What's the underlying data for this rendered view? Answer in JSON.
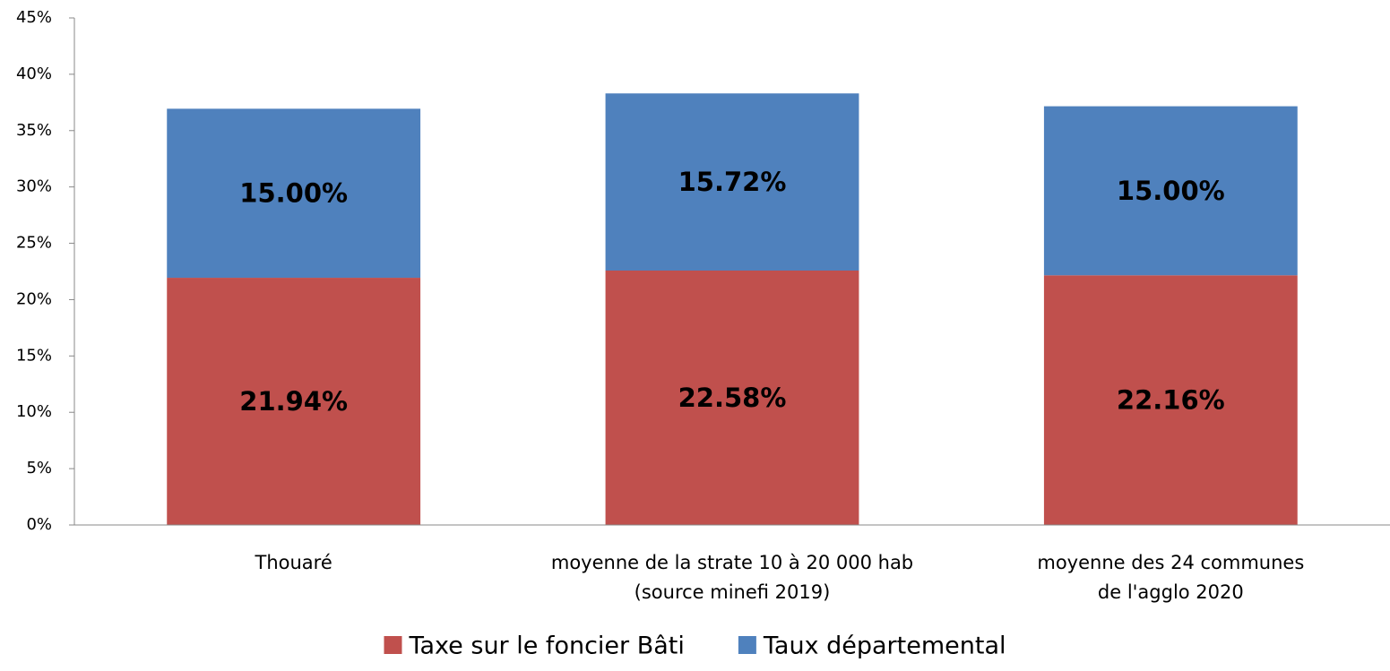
{
  "chart_data": {
    "type": "stacked_bar",
    "categories": [
      "Thouaré",
      "moyenne de la strate 10 à 20 000 hab\n(source minefi 2019)",
      "moyenne des 24 communes\nde l'agglo 2020"
    ],
    "series": [
      {
        "name": "Taxe sur le foncier Bâti",
        "color": "#c0504d",
        "values": [
          21.94,
          22.58,
          22.16
        ],
        "value_labels": [
          "21.94%",
          "22.58%",
          "22.16%"
        ]
      },
      {
        "name": "Taux départemental",
        "color": "#4f81bd",
        "values": [
          15.0,
          15.72,
          15.0
        ],
        "value_labels": [
          "15.00%",
          "15.72%",
          "15.00%"
        ]
      }
    ],
    "ylim": [
      0,
      45
    ],
    "yticks": [
      {
        "value": 0,
        "label": "0%"
      },
      {
        "value": 5,
        "label": "5%"
      },
      {
        "value": 10,
        "label": "10%"
      },
      {
        "value": 15,
        "label": "15%"
      },
      {
        "value": 20,
        "label": "20%"
      },
      {
        "value": 25,
        "label": "25%"
      },
      {
        "value": 30,
        "label": "30%"
      },
      {
        "value": 35,
        "label": "35%"
      },
      {
        "value": 40,
        "label": "40%"
      },
      {
        "value": 45,
        "label": "45%"
      }
    ],
    "legend": "bottom"
  }
}
